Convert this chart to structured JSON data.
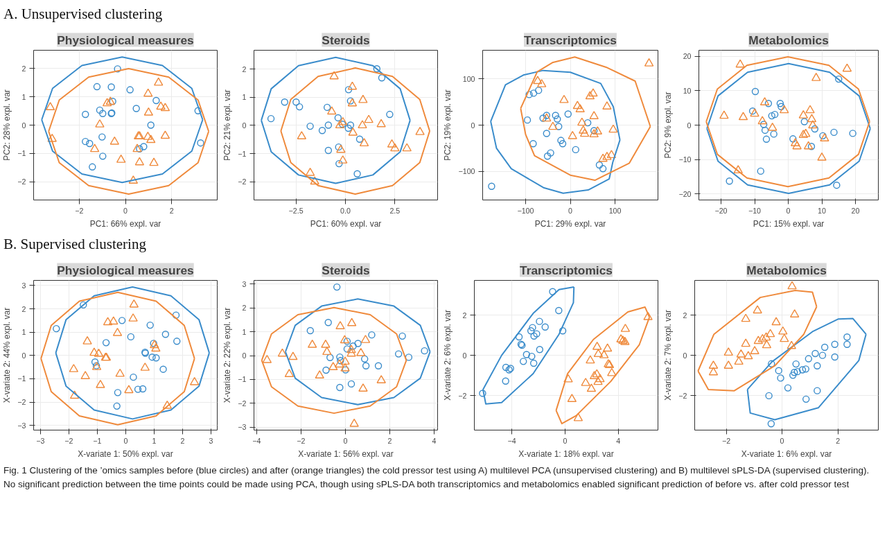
{
  "chart_data": [
    {
      "type": "scatter",
      "title": "Physiological measures",
      "xlabel": "PC1: 66% expl. var",
      "ylabel": "PC2: 28% expl. var",
      "xlim": [
        -3.97,
        3.97
      ],
      "ylim": [
        -2.65,
        2.65
      ],
      "xticks": [
        -2,
        0,
        2
      ],
      "yticks": [
        -2,
        -1,
        0,
        1,
        2
      ],
      "grid": true,
      "annotations": [
        "A. Unsupervised clustering"
      ],
      "series": [
        {
          "color": "#3a8ccb",
          "marker": "circle",
          "x": [
            -0.34,
            -1.23,
            -0.61,
            0.2,
            1.33,
            -0.55,
            -1.11,
            -1.73,
            -0.98,
            -0.61,
            -0.59,
            0.47,
            3.14,
            1.1,
            3.25,
            -1.01,
            -1.73,
            -1.55,
            0.79,
            0.61,
            -0.98,
            -1.43
          ],
          "values": [
            1.99,
            1.36,
            1.35,
            1.25,
            0.87,
            0.84,
            0.53,
            0.38,
            0.41,
            0.41,
            0.43,
            0.59,
            0.51,
            0.0,
            -0.63,
            -0.42,
            -0.58,
            -0.65,
            -0.76,
            -0.84,
            -1.1,
            -1.48
          ]
        },
        {
          "color": "#ef8a3c",
          "marker": "triangle",
          "x": [
            1.43,
            0.98,
            -0.79,
            -0.65,
            -3.25,
            1.53,
            1.72,
            1.0,
            -1.11,
            -3.17,
            0.56,
            0.61,
            0.97,
            1.1,
            1.72,
            -0.47,
            -1.33,
            0.51,
            -0.19,
            0.61,
            1.23,
            0.34
          ],
          "values": [
            1.5,
            1.11,
            0.77,
            0.82,
            0.63,
            0.65,
            0.6,
            0.44,
            0.02,
            -0.49,
            -0.4,
            -0.4,
            -0.42,
            -0.53,
            -0.38,
            -0.59,
            -0.85,
            -0.85,
            -1.23,
            -1.32,
            -1.34,
            -1.97
          ]
        },
        {
          "type": "line",
          "color": "#3a8ccb",
          "x": [
            -3.62,
            -3.15,
            -1.88,
            -0.14,
            1.6,
            2.87,
            3.34
          ],
          "values": [
            0.19,
            1.3,
            2.11,
            2.41,
            2.11,
            1.3,
            0.19
          ]
        },
        {
          "type": "line",
          "color": "#3a8ccb",
          "x": [
            -3.62,
            -3.15,
            -1.88,
            -0.14,
            1.6,
            2.87,
            3.34
          ],
          "values": [
            0.19,
            -0.92,
            -1.73,
            -2.03,
            -1.73,
            -0.92,
            0.19
          ]
        },
        {
          "type": "line",
          "color": "#ef8a3c",
          "x": [
            -3.32,
            -2.86,
            -1.59,
            0.14,
            1.87,
            3.14,
            3.6
          ],
          "values": [
            -0.22,
            0.89,
            1.7,
            2.0,
            1.7,
            0.89,
            -0.22
          ]
        },
        {
          "type": "line",
          "color": "#ef8a3c",
          "x": [
            -3.32,
            -2.86,
            -1.59,
            0.14,
            1.87,
            3.14,
            3.6
          ],
          "values": [
            -0.22,
            -1.33,
            -2.14,
            -2.44,
            -2.14,
            -1.33,
            -0.22
          ]
        }
      ]
    },
    {
      "type": "scatter",
      "title": "Steroids",
      "xlabel": "PC1: 60% expl. var",
      "ylabel": "PC2: 21% expl. var",
      "xlim": [
        -4.62,
        4.66
      ],
      "ylim": [
        -2.65,
        2.67
      ],
      "xticks": [
        -2.5,
        {
          "value": 0,
          "label": "0.0"
        },
        2.5
      ],
      "yticks": [
        -2,
        -1,
        0,
        1,
        2
      ],
      "grid": true,
      "series": [
        {
          "color": "#3a8ccb",
          "marker": "circle",
          "x": [
            1.59,
            1.84,
            0.16,
            -3.07,
            -2.49,
            -2.32,
            0.26,
            -0.92,
            2.24,
            -3.76,
            -0.37,
            -0.15,
            0.26,
            -1.78,
            -0.86,
            -1.17,
            0.15,
            0.72,
            -0.34,
            -0.86,
            -0.32,
            0.6
          ],
          "values": [
            2.01,
            1.69,
            1.27,
            0.83,
            0.83,
            0.66,
            0.87,
            0.64,
            0.39,
            0.24,
            0.27,
            0.04,
            0.01,
            -0.03,
            0.01,
            -0.18,
            -0.1,
            -0.49,
            -0.77,
            -0.89,
            -1.36,
            -1.72
          ]
        },
        {
          "color": "#ef8a3c",
          "marker": "triangle",
          "x": [
            -0.57,
            0.35,
            0.89,
            0.35,
            -0.69,
            -0.13,
            -0.28,
            0.86,
            1.18,
            1.81,
            0.38,
            -2.21,
            3.77,
            0.95,
            2.35,
            2.5,
            3.11,
            -0.23,
            -0.13,
            -1.78,
            -1.55
          ],
          "values": [
            1.74,
            1.37,
            0.9,
            0.78,
            0.49,
            0.11,
            0.0,
            0.0,
            0.19,
            0.04,
            -0.26,
            -0.39,
            -0.24,
            -0.64,
            -0.68,
            -0.82,
            -0.82,
            -0.87,
            -1.25,
            -1.69,
            -2.0
          ]
        },
        {
          "type": "line",
          "color": "#3a8ccb",
          "x": [
            -4.25,
            -3.75,
            -2.37,
            -0.49,
            1.39,
            2.77,
            3.27
          ],
          "values": [
            0.18,
            1.3,
            2.12,
            2.42,
            2.12,
            1.3,
            0.18
          ]
        },
        {
          "type": "line",
          "color": "#3a8ccb",
          "x": [
            -4.25,
            -3.75,
            -2.37,
            -0.49,
            1.39,
            2.77,
            3.27
          ],
          "values": [
            0.18,
            -0.94,
            -1.76,
            -2.06,
            -1.76,
            -0.94,
            0.18
          ]
        },
        {
          "type": "line",
          "color": "#ef8a3c",
          "x": [
            -3.26,
            -2.76,
            -1.38,
            0.5,
            2.38,
            3.76,
            4.26
          ],
          "values": [
            -0.2,
            0.92,
            1.74,
            2.04,
            1.74,
            0.92,
            -0.2
          ]
        },
        {
          "type": "line",
          "color": "#ef8a3c",
          "x": [
            -3.26,
            -2.76,
            -1.38,
            0.5,
            2.38,
            3.76,
            4.26
          ],
          "values": [
            -0.2,
            -1.32,
            -2.14,
            -2.44,
            -2.14,
            -1.32,
            -0.2
          ]
        }
      ]
    },
    {
      "type": "scatter",
      "title": "Transcriptomics",
      "xlabel": "PC1: 29% expl. var",
      "ylabel": "PC2: 19% expl. var",
      "xlim": [
        -196,
        196
      ],
      "ylim": [
        -161.6,
        161.6
      ],
      "xticks": [
        -100,
        0,
        100
      ],
      "yticks": [
        -100,
        0,
        100
      ],
      "grid": true,
      "series": [
        {
          "color": "#3a8ccb",
          "marker": "circle",
          "x": [
            -176,
            -96,
            -92,
            -82,
            -71,
            -61,
            -53,
            -33,
            -29,
            -26,
            -5,
            -53,
            -21,
            -17,
            39,
            53,
            -83,
            -44,
            -51,
            12,
            65,
            73
          ],
          "values": [
            -132,
            11,
            66,
            69,
            75,
            15,
            21,
            21,
            13,
            -3,
            24,
            -18,
            -33,
            -40,
            5,
            -12,
            -40,
            -60,
            -67,
            -53,
            -86,
            -94
          ]
        },
        {
          "color": "#ef8a3c",
          "marker": "triangle",
          "x": [
            176,
            -73,
            -64,
            -14,
            16,
            22,
            44,
            51,
            82,
            53,
            26,
            -53,
            -39,
            29,
            32,
            53,
            61,
            96,
            5,
            73,
            82,
            92
          ],
          "values": [
            133,
            95,
            88,
            54,
            41,
            34,
            62,
            68,
            40,
            19,
            5,
            14,
            -4,
            -12,
            -19,
            -20,
            -14,
            -10,
            -24,
            -73,
            -69,
            -65
          ]
        },
        {
          "type": "line",
          "color": "#3a8ccb",
          "x": [
            -178,
            -145,
            -105,
            -61,
            0,
            68,
            96,
            111
          ],
          "values": [
            8,
            87,
            108,
            118,
            114,
            90,
            40,
            -32
          ]
        },
        {
          "type": "line",
          "color": "#3a8ccb",
          "x": [
            -178,
            -165,
            -132,
            -60,
            -16,
            40,
            87,
            95,
            111
          ],
          "values": [
            8,
            -50,
            -94,
            -135,
            -147,
            -140,
            -116,
            -80,
            -32
          ]
        },
        {
          "type": "line",
          "color": "#ef8a3c",
          "x": [
            -111,
            -74,
            -40,
            10,
            80,
            145,
            179
          ],
          "values": [
            36,
            115,
            135,
            147,
            125,
            95,
            -3
          ]
        },
        {
          "type": "line",
          "color": "#ef8a3c",
          "x": [
            -111,
            -100,
            -80,
            0,
            55,
            132,
            179
          ],
          "values": [
            36,
            -20,
            -66,
            -108,
            -119,
            -82,
            -3
          ]
        }
      ]
    },
    {
      "type": "scatter",
      "title": "Metabolomics",
      "xlabel": "PC1: 15% expl. var",
      "ylabel": "PC2: 9% expl. var",
      "xlim": [
        -26.6,
        26.8
      ],
      "ylim": [
        -21.8,
        21.8
      ],
      "xticks": [
        -20,
        -10,
        0,
        10,
        20
      ],
      "yticks": [
        -20,
        -10,
        0,
        10,
        20
      ],
      "grid": true,
      "series": [
        {
          "color": "#3a8ccb",
          "marker": "circle",
          "x": [
            -9.8,
            -10.6,
            -5.9,
            -2.4,
            -2.1,
            -4.9,
            -4.0,
            -7.3,
            -6.9,
            -6.5,
            -4.3,
            1.4,
            4.8,
            7.9,
            6.9,
            10.3,
            13.6,
            19.2,
            15.0,
            -8.2,
            -17.5,
            14.4
          ],
          "values": [
            9.8,
            4.1,
            6.3,
            6.3,
            5.4,
            2.7,
            3.1,
            0.2,
            -1.5,
            -4.1,
            -2.6,
            -4.0,
            1.0,
            -1.1,
            -6.2,
            -3.1,
            -2.1,
            -2.4,
            13.4,
            -13.4,
            -16.3,
            -17.5
          ]
        },
        {
          "color": "#ef8a3c",
          "marker": "triangle",
          "x": [
            -14.3,
            17.5,
            8.3,
            -7.0,
            -19.1,
            -13.4,
            -10.0,
            -1.2,
            -7.7,
            -4.7,
            6.5,
            4.5,
            7.0,
            7.3,
            4.5,
            5.2,
            10.8,
            2.1,
            2.6,
            6.0,
            10.0,
            -14.9
          ],
          "values": [
            17.6,
            16.4,
            13.7,
            6.6,
            2.7,
            2.3,
            3.3,
            4.3,
            1.1,
            -0.8,
            4.3,
            2.8,
            1.7,
            -0.1,
            -2.9,
            -2.6,
            -3.9,
            -5.3,
            -6.2,
            -6.2,
            -9.5,
            -13.2
          ]
        },
        {
          "type": "line",
          "color": "#3a8ccb",
          "x": [
            -24.2,
            -20.9,
            -12.1,
            0.1,
            12.3,
            21.1,
            24.4
          ],
          "values": [
            -1.0,
            8.5,
            15.4,
            17.9,
            15.4,
            8.5,
            -1.0
          ]
        },
        {
          "type": "line",
          "color": "#3a8ccb",
          "x": [
            -24.2,
            -20.9,
            -12.1,
            0.1,
            12.3,
            21.1,
            24.4
          ],
          "values": [
            -1.0,
            -10.5,
            -17.4,
            -19.9,
            -17.4,
            -10.5,
            -1.0
          ]
        },
        {
          "type": "line",
          "color": "#ef8a3c",
          "x": [
            -24.4,
            -21.1,
            -12.3,
            -0.1,
            12.1,
            20.9,
            24.2
          ],
          "values": [
            1.0,
            10.5,
            17.4,
            19.9,
            17.4,
            10.5,
            1.0
          ]
        },
        {
          "type": "line",
          "color": "#ef8a3c",
          "x": [
            -24.4,
            -21.1,
            -12.3,
            -0.1,
            12.1,
            20.9,
            24.2
          ],
          "values": [
            1.0,
            -8.5,
            -15.4,
            -17.9,
            -15.4,
            -8.5,
            1.0
          ]
        }
      ]
    },
    {
      "type": "scatter",
      "title": "Physiological measures",
      "xlabel": "X-variate 1: 50% expl. var",
      "ylabel": "X-variate 2: 44% expl. var",
      "xlim": [
        -3.24,
        3.22
      ],
      "ylim": [
        -3.2,
        3.22
      ],
      "xticks": [
        -3,
        -2,
        -1,
        0,
        1,
        2,
        3
      ],
      "yticks": [
        -3,
        -2,
        -1,
        0,
        1,
        2,
        3
      ],
      "grid": true,
      "annotations": [
        "B. Supervised clustering"
      ],
      "series": [
        {
          "color": "#3a8ccb",
          "marker": "circle",
          "x": [
            -2.44,
            -1.49,
            -0.13,
            -0.69,
            0.18,
            0.86,
            1.4,
            1.77,
            1.8,
            0.98,
            0.68,
            0.69,
            0.93,
            1.07,
            1.32,
            -1.08,
            -1.03,
            0.27,
            -0.28,
            0.43,
            0.6,
            -0.31
          ],
          "values": [
            1.15,
            2.17,
            1.5,
            0.55,
            0.8,
            1.3,
            0.91,
            1.73,
            0.61,
            0.52,
            0.14,
            0.1,
            -0.07,
            -0.1,
            -0.59,
            -0.28,
            -0.44,
            -0.93,
            -1.59,
            -1.45,
            -1.43,
            -2.17
          ]
        },
        {
          "color": "#ef8a3c",
          "marker": "triangle",
          "x": [
            0.29,
            0.26,
            -0.63,
            -0.43,
            -0.29,
            -1.35,
            -1.11,
            -0.95,
            -0.71,
            -0.68,
            -1.02,
            1.01,
            1.06,
            0.68,
            -1.83,
            -1.42,
            -0.2,
            -0.89,
            0.11,
            -1.8,
            2.42,
            1.46
          ],
          "values": [
            2.18,
            1.58,
            1.42,
            1.45,
            0.96,
            0.6,
            0.11,
            0.07,
            -0.1,
            -0.1,
            -0.5,
            0.44,
            0.29,
            -0.53,
            -0.59,
            -0.89,
            -0.79,
            -1.27,
            -1.49,
            -1.73,
            -1.15,
            -2.16
          ]
        },
        {
          "type": "line",
          "color": "#3a8ccb",
          "x": [
            -2.46,
            -2.1,
            -1.11,
            0.24,
            1.59,
            2.58,
            2.94
          ],
          "values": [
            0.11,
            1.53,
            2.56,
            2.94,
            2.56,
            1.53,
            0.11
          ]
        },
        {
          "type": "line",
          "color": "#3a8ccb",
          "x": [
            -2.46,
            -2.1,
            -1.11,
            0.24,
            1.59,
            2.58,
            2.94
          ],
          "values": [
            0.11,
            -1.31,
            -2.34,
            -2.72,
            -2.34,
            -1.31,
            0.11
          ]
        },
        {
          "type": "line",
          "color": "#ef8a3c",
          "x": [
            -2.98,
            -2.62,
            -1.63,
            -0.28,
            1.07,
            2.06,
            2.42
          ],
          "values": [
            -0.13,
            1.29,
            2.33,
            2.71,
            2.33,
            1.29,
            -0.13
          ]
        },
        {
          "type": "line",
          "color": "#ef8a3c",
          "x": [
            -2.98,
            -2.62,
            -1.63,
            -0.28,
            1.07,
            2.06,
            2.42
          ],
          "values": [
            -0.13,
            -1.55,
            -2.59,
            -2.97,
            -2.59,
            -1.55,
            -0.13
          ]
        }
      ]
    },
    {
      "type": "scatter",
      "title": "Steroids",
      "xlabel": "X-variate 1: 56% expl. var",
      "ylabel": "X-variate 2: 22% expl. var",
      "xlim": [
        -4.12,
        4.16
      ],
      "ylim": [
        -3.13,
        3.16
      ],
      "xticks": [
        -4,
        -2,
        0,
        2,
        4
      ],
      "yticks": [
        -3,
        -2,
        -1,
        0,
        1,
        2,
        3
      ],
      "grid": true,
      "series": [
        {
          "color": "#3a8ccb",
          "marker": "circle",
          "x": [
            -0.38,
            -0.77,
            -1.58,
            1.19,
            2.57,
            0.08,
            0.35,
            0.57,
            0.08,
            -0.69,
            -0.25,
            -0.22,
            0.87,
            0.93,
            1.49,
            0.01,
            -0.87,
            2.4,
            2.86,
            3.57,
            -0.25,
            0.27
          ],
          "values": [
            2.88,
            1.39,
            1.05,
            0.87,
            0.82,
            0.6,
            0.4,
            0.51,
            0.28,
            -0.08,
            -0.06,
            -0.21,
            -0.14,
            -0.43,
            -0.43,
            -0.6,
            -0.61,
            0.07,
            -0.07,
            0.2,
            -1.34,
            -1.19
          ]
        },
        {
          "color": "#ef8a3c",
          "marker": "triangle",
          "x": [
            0.29,
            -0.23,
            -0.03,
            0.91,
            -1.49,
            -0.89,
            -0.83,
            0.27,
            0.27,
            0.7,
            -2.84,
            -2.36,
            -3.53,
            -0.01,
            -0.27,
            -0.55,
            -0.01,
            -2.53,
            -1.16,
            1.62,
            0.8,
            0.4
          ],
          "values": [
            1.36,
            1.23,
            0.64,
            0.65,
            0.45,
            0.45,
            0.15,
            0.23,
            0.08,
            0.1,
            0.08,
            -0.06,
            -0.19,
            -0.26,
            -0.38,
            -0.49,
            -0.54,
            -0.78,
            -0.84,
            -1.04,
            -1.39,
            -2.87
          ]
        },
        {
          "type": "line",
          "color": "#3a8ccb",
          "x": [
            -2.7,
            -2.26,
            -1.07,
            0.56,
            2.19,
            3.38,
            3.82
          ],
          "values": [
            0.16,
            1.27,
            2.08,
            2.38,
            2.08,
            1.27,
            0.16
          ]
        },
        {
          "type": "line",
          "color": "#3a8ccb",
          "x": [
            -2.7,
            -2.26,
            -1.07,
            0.56,
            2.19,
            3.38,
            3.82
          ],
          "values": [
            0.16,
            -0.95,
            -1.76,
            -2.06,
            -1.76,
            -0.95,
            0.16
          ]
        },
        {
          "type": "line",
          "color": "#ef8a3c",
          "x": [
            -3.77,
            -3.33,
            -2.14,
            -0.51,
            1.12,
            2.31,
            2.75
          ],
          "values": [
            -0.2,
            0.91,
            1.72,
            2.02,
            1.72,
            0.91,
            -0.2
          ]
        },
        {
          "type": "line",
          "color": "#ef8a3c",
          "x": [
            -3.77,
            -3.33,
            -2.14,
            -0.51,
            1.12,
            2.31,
            2.75
          ],
          "values": [
            -0.2,
            -1.31,
            -2.12,
            -2.42,
            -2.12,
            -1.31,
            -0.2
          ]
        }
      ]
    },
    {
      "type": "scatter",
      "title": "Transcriptomics",
      "xlabel": "X-variate 1: 18% expl. var",
      "ylabel": "X-variate 2: 6% expl. var",
      "xlim": [
        -6.81,
        6.98
      ],
      "ylim": [
        -3.71,
        3.74
      ],
      "xticks": [
        -4,
        0,
        4
      ],
      "yticks": [
        -2,
        0,
        2
      ],
      "grid": true,
      "series": [
        {
          "color": "#3a8ccb",
          "marker": "circle",
          "x": [
            -0.93,
            -0.47,
            -1.92,
            -1.49,
            -2.44,
            -2.56,
            -2.13,
            -2.33,
            -0.17,
            -3.45,
            -3.3,
            -3.23,
            -1.9,
            -2.89,
            -2.5,
            -3.13,
            -2.35,
            -4.44,
            -4.09,
            -4.2,
            -4.46,
            -6.19
          ],
          "values": [
            3.18,
            2.24,
            1.7,
            1.42,
            1.39,
            1.23,
            1.08,
            0.97,
            1.23,
            0.93,
            0.56,
            0.51,
            0.3,
            0.05,
            -0.04,
            -0.29,
            -0.38,
            -0.59,
            -0.64,
            -0.71,
            -1.27,
            -1.88
          ]
        },
        {
          "color": "#ef8a3c",
          "marker": "triangle",
          "x": [
            6.23,
            4.53,
            4.2,
            4.35,
            4.5,
            2.41,
            3.19,
            2.5,
            2.93,
            1.9,
            3.25,
            3.34,
            3.51,
            2.39,
            2.2,
            2.48,
            2.63,
            1.55,
            1.98,
            0.24,
            0.52,
            0.99
          ],
          "values": [
            1.91,
            1.32,
            0.8,
            0.73,
            0.67,
            0.43,
            0.34,
            0.07,
            0.01,
            -0.25,
            -0.44,
            -0.48,
            -0.88,
            -0.94,
            -1.03,
            -1.32,
            -1.18,
            -1.37,
            -1.66,
            -1.19,
            -2.17,
            -3.12
          ]
        },
        {
          "type": "line",
          "color": "#3a8ccb",
          "x": [
            -6.16,
            -4.76,
            -2.39,
            -0.45,
            0.67
          ],
          "values": [
            -1.69,
            0.01,
            2.1,
            3.28,
            3.41
          ]
        },
        {
          "type": "line",
          "color": "#3a8ccb",
          "x": [
            -6.16,
            -5.95,
            -4.76,
            -2.39,
            -0.45,
            0.63,
            0.67
          ],
          "values": [
            -1.69,
            -2.41,
            -2.34,
            -0.9,
            1.06,
            2.63,
            3.41
          ]
        },
        {
          "type": "line",
          "color": "#ef8a3c",
          "x": [
            -0.67,
            0.19,
            2.13,
            4.72,
            6.01,
            6.34
          ],
          "values": [
            -2.73,
            -0.9,
            0.8,
            2.17,
            2.41,
            1.91
          ]
        },
        {
          "type": "line",
          "color": "#ef8a3c",
          "x": [
            -0.67,
            -0.24,
            0.84,
            3.43,
            5.58,
            6.34
          ],
          "values": [
            -2.73,
            -3.39,
            -2.99,
            -1.29,
            0.54,
            1.91
          ]
        }
      ]
    },
    {
      "type": "scatter",
      "title": "Metabolomics",
      "xlabel": "X-variate 1: 6% expl. var",
      "ylabel": "X-variate 2: 7% expl. var",
      "xlim": [
        -3.13,
        3.45
      ],
      "ylim": [
        -3.71,
        3.74
      ],
      "xticks": [
        -2,
        0,
        2
      ],
      "yticks": [
        -2,
        0,
        2
      ],
      "grid": true,
      "annotations": [
        "Fig. 1  Clustering of the ’omics samples before (blue circles) and after (orange triangles) the cold pressor test using A) multilevel PCA (unsupervised clustering) and B) multilevel sPLS-DA (supervised clustering). No significant prediction between the time points could be made using PCA, though using sPLS-DA both transcriptomics and metabolomics enabled significant prediction of before vs. after cold pressor test"
      ],
      "series": [
        {
          "color": "#3a8ccb",
          "marker": "circle",
          "x": [
            2.33,
            2.33,
            1.89,
            1.53,
            1.19,
            1.45,
            1.89,
            0.95,
            0.5,
            -0.38,
            1.26,
            -0.12,
            0.55,
            0.44,
            0.73,
            0.85,
            0.39,
            -0.05,
            0.21,
            -0.47,
            1.26,
            0.86,
            -0.39
          ],
          "values": [
            0.92,
            0.56,
            0.56,
            0.41,
            0.1,
            0.01,
            -0.07,
            -0.16,
            -0.42,
            -0.41,
            -0.51,
            -0.75,
            -0.8,
            -0.84,
            -0.71,
            -0.67,
            -0.98,
            -1.12,
            -1.61,
            -2.0,
            -1.75,
            -2.17,
            -3.39
          ]
        },
        {
          "color": "#ef8a3c",
          "marker": "triangle",
          "x": [
            0.36,
            -0.88,
            0.45,
            -1.3,
            -0.21,
            0.03,
            0.08,
            -0.42,
            -0.57,
            -0.7,
            -0.85,
            -0.55,
            0.34,
            -1.3,
            -0.98,
            -1.92,
            -1.47,
            -1.21,
            -1.55,
            -1.92,
            -2.46,
            -2.46
          ],
          "values": [
            3.44,
            2.24,
            2.04,
            1.82,
            1.65,
            1.19,
            0.82,
            1.06,
            0.89,
            0.81,
            0.72,
            0.51,
            0.47,
            0.58,
            0.21,
            0.14,
            0.05,
            -0.04,
            -0.31,
            -0.51,
            -0.51,
            -0.84
          ]
        },
        {
          "type": "line",
          "color": "#3a8ccb",
          "x": [
            -1.24,
            -0.36,
            1.09,
            2.02,
            2.54,
            3.01
          ],
          "values": [
            -1.69,
            -0.31,
            1.19,
            1.82,
            1.84,
            1.06
          ]
        },
        {
          "type": "line",
          "color": "#3a8ccb",
          "x": [
            -1.24,
            -1.14,
            -0.26,
            1.3,
            2.75,
            3.01
          ],
          "values": [
            -1.69,
            -2.86,
            -3.19,
            -2.6,
            -0.25,
            1.06
          ]
        },
        {
          "type": "line",
          "color": "#ef8a3c",
          "x": [
            -3.01,
            -2.44,
            -0.78,
            0.47,
            1.09,
            1.24
          ],
          "values": [
            -0.77,
            1.06,
            2.89,
            3.24,
            3.15,
            2.43
          ]
        },
        {
          "type": "line",
          "color": "#ef8a3c",
          "x": [
            -3.01,
            -2.64,
            -1.71,
            -0.26,
            0.78,
            1.24
          ],
          "values": [
            -0.77,
            -1.69,
            -1.75,
            -0.51,
            1.06,
            2.43
          ]
        }
      ]
    }
  ]
}
